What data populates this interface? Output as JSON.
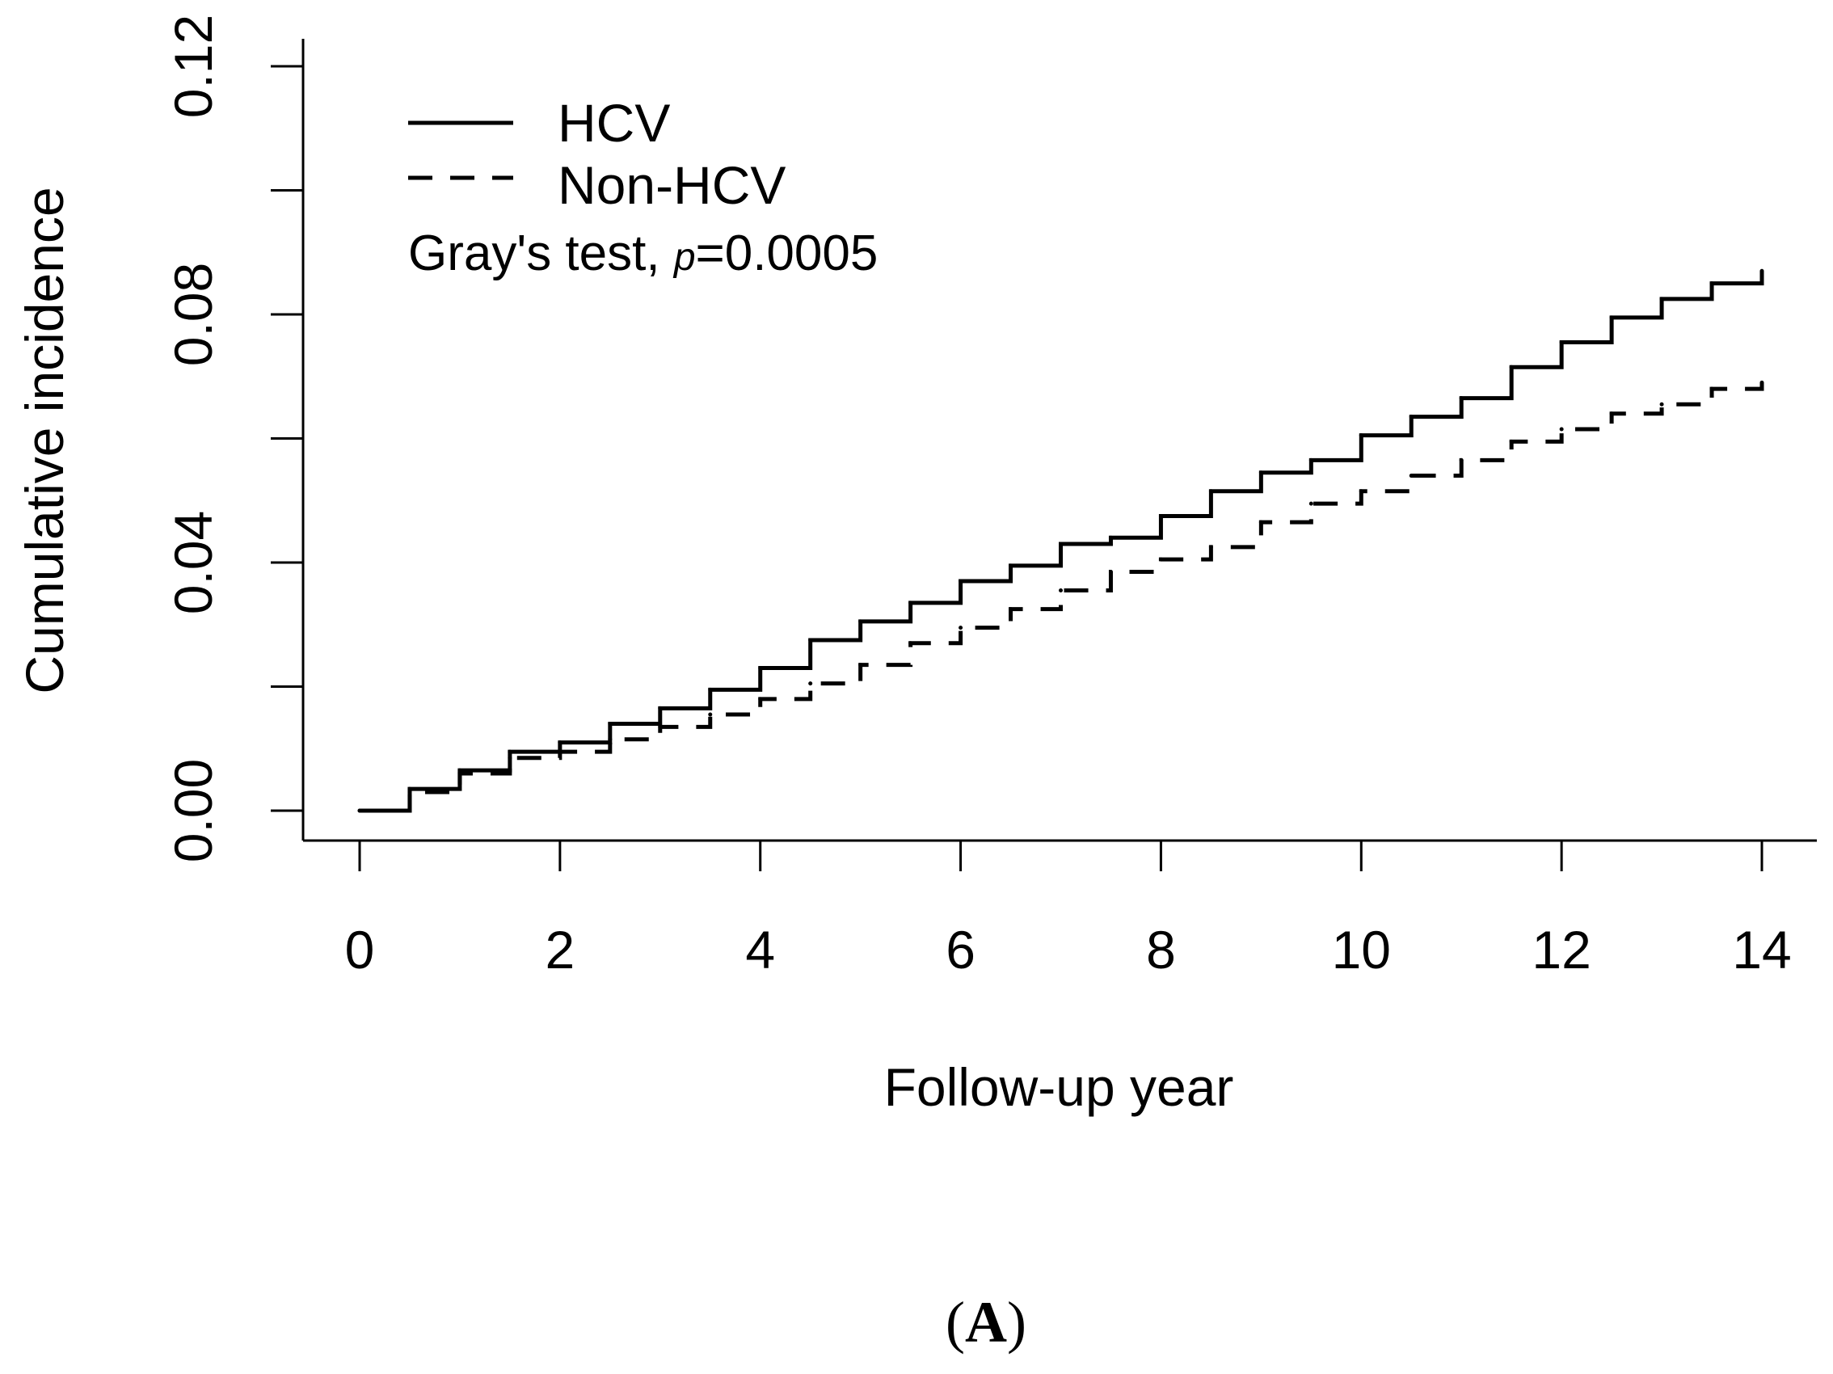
{
  "chart_data": {
    "type": "line",
    "xlabel": "Follow-up year",
    "ylabel": "Cumulative incidence",
    "xlim": [
      0,
      14
    ],
    "ylim": [
      0,
      0.12
    ],
    "x_ticks": [
      "0",
      "2",
      "4",
      "6",
      "8",
      "10",
      "12",
      "14"
    ],
    "y_ticks": [
      "0.00",
      "0.04",
      "0.08",
      "0.12"
    ],
    "legend_position": "top-left",
    "annotation": {
      "prefix": "Gray's test, ",
      "p_symbol": "p",
      "value": "=0.0005"
    },
    "panel_label": {
      "open": "(",
      "letter": "A",
      "close": ")"
    },
    "series": [
      {
        "name": "HCV",
        "line_style": "solid",
        "x": [
          0,
          0.5,
          1,
          1.5,
          2,
          2.5,
          3,
          3.5,
          4,
          4.5,
          5,
          5.5,
          6,
          6.5,
          7,
          7.5,
          8,
          8.5,
          9,
          9.5,
          10,
          10.5,
          11,
          11.5,
          12,
          12.5,
          13,
          13.5,
          14
        ],
        "y": [
          0,
          0.0035,
          0.0065,
          0.0095,
          0.011,
          0.014,
          0.0165,
          0.0195,
          0.023,
          0.0275,
          0.0305,
          0.0335,
          0.037,
          0.0395,
          0.043,
          0.044,
          0.0475,
          0.0515,
          0.0545,
          0.0565,
          0.0605,
          0.0635,
          0.0665,
          0.0715,
          0.0755,
          0.0795,
          0.0825,
          0.085,
          0.087
        ]
      },
      {
        "name": "Non-HCV",
        "line_style": "dashed",
        "x": [
          0,
          0.5,
          1,
          1.5,
          2,
          2.5,
          3,
          3.5,
          4,
          4.5,
          5,
          5.5,
          6,
          6.5,
          7,
          7.5,
          8,
          8.5,
          9,
          9.5,
          10,
          10.5,
          11,
          11.5,
          12,
          12.5,
          13,
          13.5,
          14
        ],
        "y": [
          0,
          0.003,
          0.006,
          0.0085,
          0.0095,
          0.0115,
          0.0135,
          0.0155,
          0.018,
          0.0205,
          0.0235,
          0.027,
          0.0295,
          0.0325,
          0.0355,
          0.0385,
          0.0405,
          0.0425,
          0.0465,
          0.0495,
          0.0515,
          0.054,
          0.0565,
          0.0595,
          0.0615,
          0.064,
          0.0655,
          0.068,
          0.069
        ]
      }
    ]
  },
  "colors": {
    "background": "#ffffff",
    "ink": "#000000"
  }
}
